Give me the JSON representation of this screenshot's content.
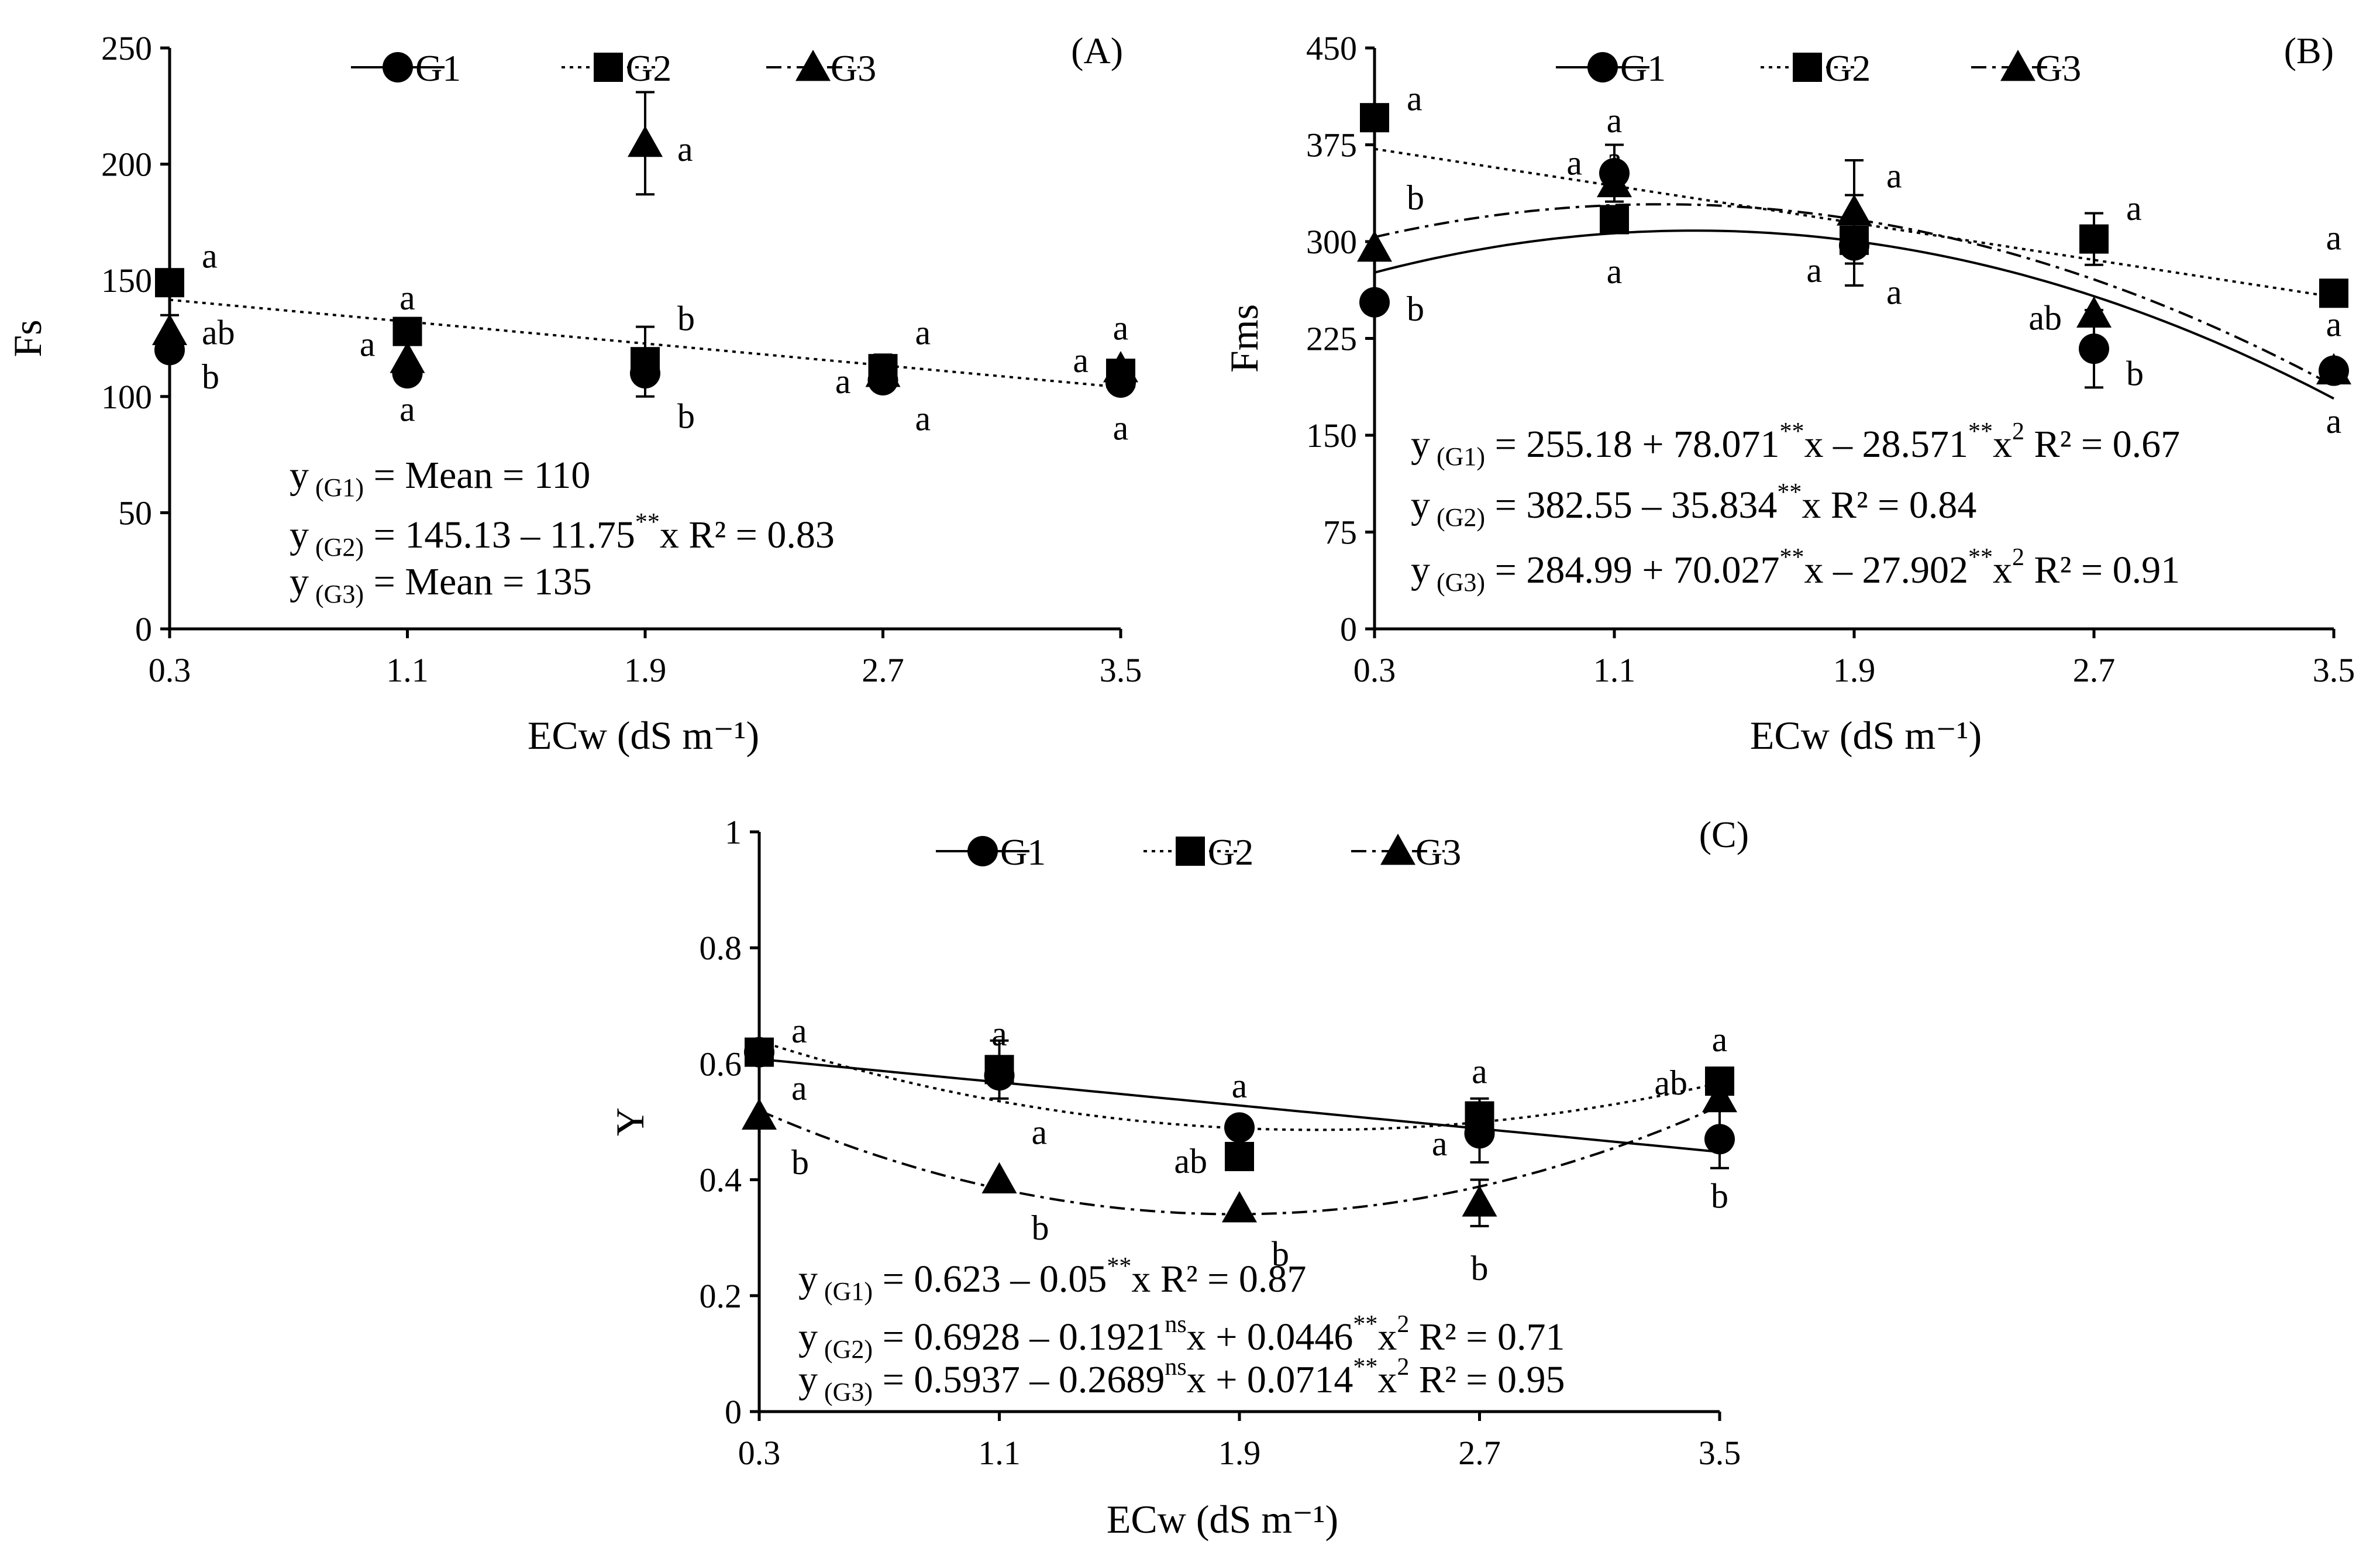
{
  "chart_data": [
    {
      "type": "scatter",
      "panel_label": "(A)",
      "xlabel": "ECw (dS m⁻¹)",
      "ylabel": "Fs",
      "xlim": [
        0.3,
        3.5
      ],
      "ylim": [
        0,
        250
      ],
      "x_ticks": [
        0.3,
        1.1,
        1.9,
        2.7,
        3.5
      ],
      "x_tick_labels": [
        "0.3",
        "1.1",
        "1.9",
        "2.7",
        "3.5"
      ],
      "y_ticks": [
        0,
        50,
        100,
        150,
        200,
        250
      ],
      "y_tick_labels": [
        "0",
        "50",
        "100",
        "150",
        "200",
        "250"
      ],
      "legend": [
        "G1",
        "G2",
        "G3"
      ],
      "series": [
        {
          "name": "G1",
          "marker": "circle",
          "x": [
            0.3,
            1.1,
            1.9,
            2.7,
            3.5
          ],
          "values": [
            120,
            110,
            110,
            107,
            106
          ],
          "error": [
            0,
            0,
            0,
            0,
            0
          ]
        },
        {
          "name": "G2",
          "marker": "square",
          "x": [
            0.3,
            1.1,
            1.9,
            2.7,
            3.5
          ],
          "values": [
            149,
            128,
            115,
            112,
            110
          ],
          "error": [
            0,
            0,
            15,
            6,
            5
          ]
        },
        {
          "name": "G3",
          "marker": "triangle",
          "x": [
            0.3,
            1.1,
            1.9,
            2.7,
            3.5
          ],
          "values": [
            128,
            116,
            209,
            110,
            112
          ],
          "error": [
            7,
            0,
            22,
            0,
            0
          ]
        }
      ],
      "fits": [
        {
          "series": "G2",
          "style": "dotted",
          "coef": [
            145.13,
            -11.75
          ]
        }
      ],
      "letters": [
        {
          "x": 0.3,
          "y": 160,
          "text": "a",
          "side": "right"
        },
        {
          "x": 0.3,
          "y": 127,
          "text": "ab",
          "side": "right"
        },
        {
          "x": 0.3,
          "y": 108,
          "text": "b",
          "side": "right"
        },
        {
          "x": 1.1,
          "y": 142,
          "text": "a",
          "side": "center"
        },
        {
          "x": 1.1,
          "y": 122,
          "text": "a",
          "side": "left"
        },
        {
          "x": 1.1,
          "y": 94,
          "text": "a",
          "side": "center"
        },
        {
          "x": 1.9,
          "y": 206,
          "text": "a",
          "side": "right"
        },
        {
          "x": 1.9,
          "y": 133,
          "text": "b",
          "side": "right"
        },
        {
          "x": 1.9,
          "y": 91,
          "text": "b",
          "side": "right"
        },
        {
          "x": 2.7,
          "y": 127,
          "text": "a",
          "side": "right"
        },
        {
          "x": 2.7,
          "y": 106,
          "text": "a",
          "side": "left"
        },
        {
          "x": 2.7,
          "y": 90,
          "text": "a",
          "side": "right"
        },
        {
          "x": 3.5,
          "y": 129,
          "text": "a",
          "side": "center"
        },
        {
          "x": 3.5,
          "y": 115,
          "text": "a",
          "side": "left"
        },
        {
          "x": 3.5,
          "y": 86,
          "text": "a",
          "side": "center"
        }
      ],
      "equations": [
        {
          "pre": "y",
          "sub": "(G1)",
          "rest": "= Mean = 110"
        },
        {
          "pre": "y",
          "sub": "(G2)",
          "rest": "= 145.13 – 11.75",
          "sup": "**",
          "rest2": "x R² = 0.83"
        },
        {
          "pre": "y",
          "sub": "(G3)",
          "rest": "= Mean = 135"
        }
      ]
    },
    {
      "type": "scatter",
      "panel_label": "(B)",
      "xlabel": "ECw (dS m⁻¹)",
      "ylabel": "Fms",
      "xlim": [
        0.3,
        3.5
      ],
      "ylim": [
        0,
        450
      ],
      "x_ticks": [
        0.3,
        1.1,
        1.9,
        2.7,
        3.5
      ],
      "x_tick_labels": [
        "0.3",
        "1.1",
        "1.9",
        "2.7",
        "3.5"
      ],
      "y_ticks": [
        0,
        75,
        150,
        225,
        300,
        375,
        450
      ],
      "y_tick_labels": [
        "0",
        "75",
        "150",
        "225",
        "300",
        "375",
        "450"
      ],
      "legend": [
        "G1",
        "G2",
        "G3"
      ],
      "series": [
        {
          "name": "G1",
          "marker": "circle",
          "x": [
            0.3,
            1.1,
            1.9,
            2.7,
            3.5
          ],
          "values": [
            253,
            353,
            297,
            217,
            200
          ],
          "error": [
            0,
            22,
            0,
            30,
            0
          ]
        },
        {
          "name": "G2",
          "marker": "square",
          "x": [
            0.3,
            1.1,
            1.9,
            2.7,
            3.5
          ],
          "values": [
            396,
            317,
            301,
            302,
            260
          ],
          "error": [
            0,
            10,
            35,
            20,
            10
          ]
        },
        {
          "name": "G3",
          "marker": "triangle",
          "x": [
            0.3,
            1.1,
            1.9,
            2.7,
            3.5
          ],
          "values": [
            295,
            345,
            323,
            244,
            200
          ],
          "error": [
            0,
            0,
            40,
            0,
            0
          ]
        }
      ],
      "fits": [
        {
          "series": "G1",
          "style": "solid",
          "coef": [
            255.18,
            78.071,
            -28.571
          ]
        },
        {
          "series": "G2",
          "style": "dotted",
          "coef": [
            382.55,
            -35.834
          ]
        },
        {
          "series": "G3",
          "style": "dashdot",
          "coef": [
            284.99,
            70.027,
            -27.902
          ]
        }
      ],
      "letters": [
        {
          "x": 0.3,
          "y": 410,
          "text": "a",
          "side": "right"
        },
        {
          "x": 0.3,
          "y": 333,
          "text": "b",
          "side": "right"
        },
        {
          "x": 0.3,
          "y": 247,
          "text": "b",
          "side": "right"
        },
        {
          "x": 1.1,
          "y": 393,
          "text": "a",
          "side": "center"
        },
        {
          "x": 1.1,
          "y": 363,
          "text": "a",
          "side": "center"
        },
        {
          "x": 1.1,
          "y": 360,
          "text": "a",
          "side": "left"
        },
        {
          "x": 1.1,
          "y": 276,
          "text": "a",
          "side": "center"
        },
        {
          "x": 1.9,
          "y": 350,
          "text": "a",
          "side": "right"
        },
        {
          "x": 1.9,
          "y": 277,
          "text": "a",
          "side": "left"
        },
        {
          "x": 1.9,
          "y": 260,
          "text": "a",
          "side": "right"
        },
        {
          "x": 2.7,
          "y": 325,
          "text": "a",
          "side": "right"
        },
        {
          "x": 2.7,
          "y": 240,
          "text": "ab",
          "side": "left"
        },
        {
          "x": 2.7,
          "y": 197,
          "text": "b",
          "side": "right"
        },
        {
          "x": 3.5,
          "y": 302,
          "text": "a",
          "side": "center"
        },
        {
          "x": 3.5,
          "y": 235,
          "text": "a",
          "side": "center"
        },
        {
          "x": 3.5,
          "y": 160,
          "text": "a",
          "side": "center"
        }
      ],
      "equations": [
        {
          "pre": "y",
          "sub": "(G1)",
          "rest": "= 255.18 + 78.071",
          "sup": "**",
          "rest2": "x – 28.571",
          "sup2": "**",
          "rest3": "x",
          "sup3": "2",
          "rest4": " R² = 0.67"
        },
        {
          "pre": "y",
          "sub": "(G2)",
          "rest": "= 382.55 – 35.834",
          "sup": "**",
          "rest2": "x R² = 0.84"
        },
        {
          "pre": "y",
          "sub": "(G3)",
          "rest": "= 284.99 + 70.027",
          "sup": "**",
          "rest2": "x – 27.902",
          "sup2": "**",
          "rest3": "x",
          "sup3": "2",
          "rest4": " R² = 0.91"
        }
      ]
    },
    {
      "type": "scatter",
      "panel_label": "(C)",
      "xlabel": "ECw (dS m⁻¹)",
      "ylabel": "Y",
      "xlim": [
        0.3,
        3.5
      ],
      "ylim": [
        0,
        1
      ],
      "x_ticks": [
        0.3,
        1.1,
        1.9,
        2.7,
        3.5
      ],
      "x_tick_labels": [
        "0.3",
        "1.1",
        "1.9",
        "2.7",
        "3.5"
      ],
      "y_ticks": [
        0,
        0.2,
        0.4,
        0.6,
        0.8,
        1
      ],
      "y_tick_labels": [
        "0",
        "0.2",
        "0.4",
        "0.6",
        "0.8",
        "1"
      ],
      "legend": [
        "G1",
        "G2",
        "G3"
      ],
      "series": [
        {
          "name": "G1",
          "marker": "circle",
          "x": [
            0.3,
            1.1,
            1.9,
            2.7,
            3.5
          ],
          "values": [
            0.62,
            0.58,
            0.49,
            0.48,
            0.47
          ],
          "error": [
            0,
            0,
            0,
            0.05,
            0.05
          ]
        },
        {
          "name": "G2",
          "marker": "square",
          "x": [
            0.3,
            1.1,
            1.9,
            2.7,
            3.5
          ],
          "values": [
            0.62,
            0.59,
            0.44,
            0.51,
            0.57
          ],
          "error": [
            0,
            0.05,
            0,
            0.03,
            0
          ]
        },
        {
          "name": "G3",
          "marker": "triangle",
          "x": [
            0.3,
            1.1,
            1.9,
            2.7,
            3.5
          ],
          "values": [
            0.51,
            0.4,
            0.35,
            0.36,
            0.54
          ],
          "error": [
            0,
            0,
            0,
            0.04,
            0
          ]
        }
      ],
      "fits": [
        {
          "series": "G1",
          "style": "solid",
          "coef": [
            0.623,
            -0.05
          ]
        },
        {
          "series": "G2",
          "style": "dotted",
          "coef": [
            0.6928,
            -0.1921,
            0.0446
          ]
        },
        {
          "series": "G3",
          "style": "dashdot",
          "coef": [
            0.5937,
            -0.2689,
            0.0714
          ]
        }
      ],
      "letters": [
        {
          "x": 0.3,
          "y": 0.655,
          "text": "a",
          "side": "right"
        },
        {
          "x": 0.3,
          "y": 0.556,
          "text": "a",
          "side": "right"
        },
        {
          "x": 0.3,
          "y": 0.428,
          "text": "b",
          "side": "right"
        },
        {
          "x": 1.1,
          "y": 0.65,
          "text": "a",
          "side": "center"
        },
        {
          "x": 1.1,
          "y": 0.48,
          "text": "a",
          "side": "right"
        },
        {
          "x": 1.1,
          "y": 0.315,
          "text": "b",
          "side": "right"
        },
        {
          "x": 1.9,
          "y": 0.56,
          "text": "a",
          "side": "center"
        },
        {
          "x": 1.9,
          "y": 0.43,
          "text": "ab",
          "side": "left"
        },
        {
          "x": 1.9,
          "y": 0.27,
          "text": "b",
          "side": "right"
        },
        {
          "x": 2.7,
          "y": 0.585,
          "text": "a",
          "side": "center"
        },
        {
          "x": 2.7,
          "y": 0.46,
          "text": "a",
          "side": "left"
        },
        {
          "x": 2.7,
          "y": 0.245,
          "text": "b",
          "side": "center"
        },
        {
          "x": 3.5,
          "y": 0.64,
          "text": "a",
          "side": "center"
        },
        {
          "x": 3.5,
          "y": 0.565,
          "text": "ab",
          "side": "left"
        },
        {
          "x": 3.5,
          "y": 0.37,
          "text": "b",
          "side": "center"
        }
      ],
      "equations": [
        {
          "pre": "y",
          "sub": "(G1)",
          "rest": "= 0.623 – 0.05",
          "sup": "**",
          "rest2": "x R² = 0.87"
        },
        {
          "pre": "y",
          "sub": "(G2)",
          "rest": "= 0.6928 – 0.1921",
          "sup": "ns",
          "rest2": "x + 0.0446",
          "sup2": "**",
          "rest3": "x",
          "sup3": "2",
          "rest4": " R² = 0.71"
        },
        {
          "pre": "y",
          "sub": "(G3)",
          "rest": "= 0.5937 – 0.2689",
          "sup": "ns",
          "rest2": "x + 0.0714",
          "sup2": "**",
          "rest3": "x",
          "sup3": "2",
          "rest4": " R² = 0.95"
        }
      ]
    }
  ]
}
